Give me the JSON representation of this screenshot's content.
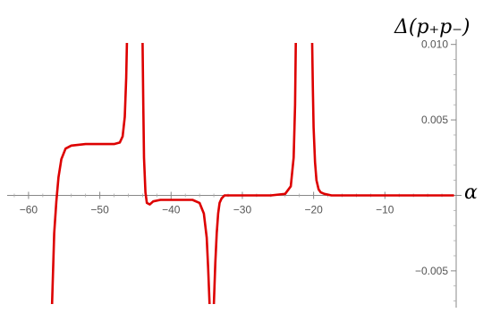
{
  "chart_data": {
    "type": "line",
    "xlabel": "α",
    "ylabel": "Δ(p₊p₋)",
    "xlim": [
      -63,
      0
    ],
    "ylim": [
      -0.0072,
      0.0101
    ],
    "x_ticks": [
      -60,
      -50,
      -40,
      -30,
      -20,
      -10
    ],
    "x_tick_labels": [
      "−60",
      "−50",
      "−40",
      "−30",
      "−20",
      "−10"
    ],
    "y_ticks": [
      -0.005,
      0.005,
      0.01
    ],
    "y_tick_labels": [
      "−0.005",
      "0.005",
      "0.010"
    ],
    "grid": false,
    "series_color": "#dd0000",
    "series": [
      {
        "x": [
          -56.7,
          -56.4,
          -56.1,
          -55.8,
          -55.4,
          -54.8,
          -54.0,
          -52.0,
          -50.0,
          -48.0,
          -47.2,
          -46.8,
          -46.5,
          -46.3,
          -46.2
        ],
        "y": [
          -0.0072,
          -0.0025,
          -0.0004,
          0.0012,
          0.0024,
          0.0031,
          0.0033,
          0.0034,
          0.0034,
          0.0034,
          0.0035,
          0.0039,
          0.0052,
          0.0078,
          0.0101
        ]
      },
      {
        "x": [
          -44.0,
          -43.9,
          -43.8,
          -43.6,
          -43.4,
          -43.0,
          -42.5,
          -41.5,
          -39.0,
          -37.0,
          -36.0,
          -35.4,
          -35.0,
          -34.8,
          -34.6
        ],
        "y": [
          0.0101,
          0.006,
          0.0025,
          0.0002,
          -0.0005,
          -0.0006,
          -0.0004,
          -0.0003,
          -0.0003,
          -0.0003,
          -0.0005,
          -0.0012,
          -0.0028,
          -0.0048,
          -0.0072
        ]
      },
      {
        "x": [
          -34.0,
          -33.8,
          -33.6,
          -33.4,
          -33.2,
          -32.9,
          -32.5,
          -31.5,
          -29.0,
          -26.0,
          -24.0,
          -23.2,
          -22.8,
          -22.6,
          -22.5
        ],
        "y": [
          -0.0072,
          -0.0045,
          -0.0025,
          -0.0012,
          -0.0005,
          -0.0002,
          0.0,
          0.0,
          0.0,
          0.0,
          0.0001,
          0.0006,
          0.0025,
          0.006,
          0.0101
        ]
      },
      {
        "x": [
          -20.2,
          -20.1,
          -20.0,
          -19.8,
          -19.6,
          -19.3,
          -19.0,
          -18.5,
          -17.5,
          -15.0,
          -12.0,
          -9.0,
          -6.0,
          -3.0,
          -0.3
        ],
        "y": [
          0.0101,
          0.007,
          0.0045,
          0.0022,
          0.001,
          0.0004,
          0.0002,
          0.0001,
          0.0,
          0.0,
          0.0,
          0.0,
          0.0,
          0.0,
          0.0
        ]
      }
    ]
  }
}
